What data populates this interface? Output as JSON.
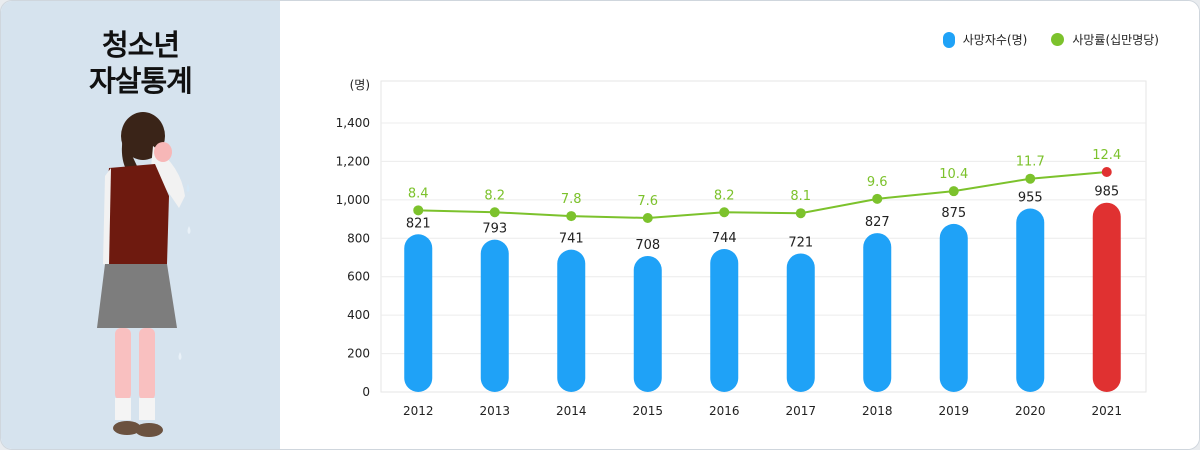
{
  "title": {
    "line1": "청소년",
    "line2": "자살통계"
  },
  "colors": {
    "bar": "#1fa2f7",
    "bar_highlight": "#e03131",
    "line": "#7cc22c",
    "line_highlight_point": "#e03131",
    "panel": "#d6e3ee"
  },
  "icons": {
    "illustration": "crying-girl-icon"
  },
  "chart_data": {
    "type": "bar",
    "categories": [
      "2012",
      "2013",
      "2014",
      "2015",
      "2016",
      "2017",
      "2018",
      "2019",
      "2020",
      "2021"
    ],
    "series": [
      {
        "name": "사망자수(명)",
        "type": "bar",
        "values": [
          821,
          793,
          741,
          708,
          744,
          721,
          827,
          875,
          955,
          985
        ]
      },
      {
        "name": "사망률(십만명당)",
        "type": "line",
        "values": [
          8.4,
          8.2,
          7.8,
          7.6,
          8.2,
          8.1,
          9.6,
          10.4,
          11.7,
          12.4
        ]
      }
    ],
    "y_unit": "(명)",
    "y_ticks": [
      "0",
      "200",
      "400",
      "600",
      "800",
      "1,000",
      "1,200",
      "1,400"
    ],
    "ylim": [
      0,
      1400
    ],
    "grid": true,
    "legend": "top-right",
    "highlight_index": 9
  }
}
